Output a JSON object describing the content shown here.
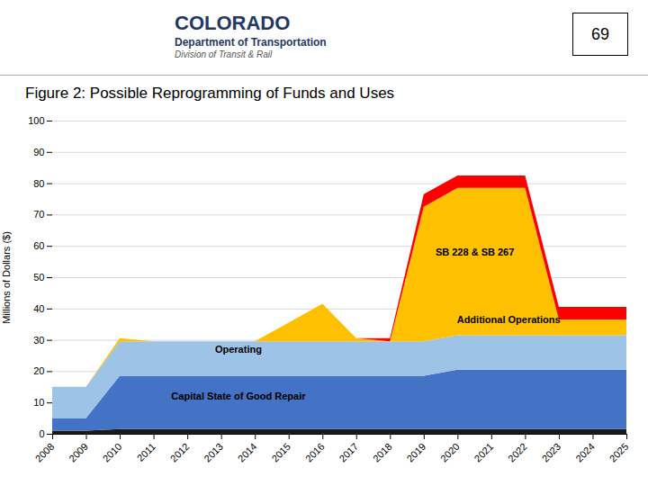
{
  "chart_data": {
    "type": "area",
    "stacked": true,
    "title": "Figure 2: Possible Reprogramming of Funds and Uses",
    "ylabel": "Millions of Dollars ($)",
    "x": [
      2008,
      2009,
      2010,
      2011,
      2012,
      2013,
      2014,
      2015,
      2016,
      2017,
      2018,
      2019,
      2020,
      2021,
      2022,
      2023,
      2024,
      2025
    ],
    "xlim": [
      2008,
      2025
    ],
    "xticks": [
      2008,
      2009,
      2010,
      2011,
      2012,
      2013,
      2014,
      2015,
      2016,
      2017,
      2018,
      2019,
      2020,
      2021,
      2022,
      2023,
      2024,
      2025
    ],
    "ylim": [
      0,
      100
    ],
    "yticks": [
      0,
      10,
      20,
      30,
      40,
      50,
      60,
      70,
      80,
      90,
      100
    ],
    "grid": true,
    "series": [
      {
        "color": "#1A1A1A",
        "values": [
          1,
          1,
          1.5,
          1.5,
          1.5,
          1.5,
          1.5,
          1.5,
          1.5,
          1.5,
          1.5,
          1.5,
          1.5,
          1.5,
          1.5,
          1.5,
          1.5,
          1.5
        ]
      },
      {
        "color": "#4472C4",
        "values": [
          4,
          4,
          17,
          17,
          17,
          17,
          17,
          17,
          17,
          17,
          17,
          17,
          19,
          19,
          19,
          19,
          19,
          19
        ]
      },
      {
        "color": "#9DC3E6",
        "values": [
          10,
          10,
          11,
          11,
          11,
          11,
          11,
          11,
          11,
          11,
          11,
          11,
          11,
          11,
          11,
          11,
          11,
          11
        ]
      },
      {
        "color": "#FFC000",
        "values": [
          0,
          0,
          1,
          0,
          0,
          0,
          0,
          6,
          12,
          1,
          0,
          43,
          47,
          47,
          47,
          5,
          5,
          5
        ]
      },
      {
        "color": "#FF0000",
        "values": [
          0,
          0,
          0,
          0,
          0,
          0,
          0,
          0,
          0,
          0,
          1,
          4,
          4,
          4,
          4,
          4,
          4,
          4
        ]
      }
    ],
    "annotations": [
      {
        "text": "COLORADO"
      },
      {
        "text": "Department of Transportation"
      },
      {
        "text": "Division of Transit & Rail"
      },
      {
        "text": "69"
      },
      {
        "text": "SB 228 & SB 267",
        "x": 2020.5,
        "y": 58
      },
      {
        "text": "Additional Operations",
        "x": 2021.5,
        "y": 36.5
      },
      {
        "text": "Operating",
        "x": 2013.5,
        "y": 27
      },
      {
        "text": "Capital State of Good Repair",
        "x": 2013.5,
        "y": 12
      }
    ]
  }
}
